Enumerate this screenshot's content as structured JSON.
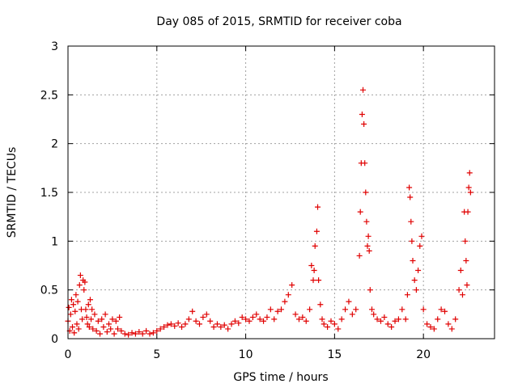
{
  "chart_data": {
    "type": "scatter",
    "title": "Day 085 of 2015, SRMTID for receiver coba",
    "xlabel": "GPS time / hours",
    "ylabel": "SRMTID / TECUs",
    "xlim": [
      0,
      24
    ],
    "ylim": [
      0,
      3
    ],
    "xticks": [
      0,
      5,
      10,
      15,
      20
    ],
    "yticks": [
      0,
      0.5,
      1,
      1.5,
      2,
      2.5,
      3
    ],
    "xtick_labels": [
      "0",
      "5",
      "10",
      "15",
      "20"
    ],
    "ytick_labels": [
      "0",
      "0.5",
      "1",
      "1.5",
      "2",
      "2.5",
      "3"
    ],
    "grid": true,
    "marker": "plus",
    "marker_color": "#e00000",
    "series": [
      {
        "points": [
          [
            0.0,
            0.18
          ],
          [
            0.05,
            0.32
          ],
          [
            0.1,
            0.08
          ],
          [
            0.15,
            0.25
          ],
          [
            0.2,
            0.4
          ],
          [
            0.25,
            0.12
          ],
          [
            0.3,
            0.35
          ],
          [
            0.35,
            0.06
          ],
          [
            0.4,
            0.28
          ],
          [
            0.45,
            0.45
          ],
          [
            0.5,
            0.15
          ],
          [
            0.55,
            0.38
          ],
          [
            0.6,
            0.1
          ],
          [
            0.65,
            0.55
          ],
          [
            0.7,
            0.65
          ],
          [
            0.75,
            0.3
          ],
          [
            0.8,
            0.2
          ],
          [
            0.85,
            0.6
          ],
          [
            0.9,
            0.5
          ],
          [
            0.95,
            0.58
          ],
          [
            1.0,
            0.3
          ],
          [
            1.05,
            0.22
          ],
          [
            1.1,
            0.15
          ],
          [
            1.15,
            0.35
          ],
          [
            1.2,
            0.12
          ],
          [
            1.25,
            0.4
          ],
          [
            1.3,
            0.2
          ],
          [
            1.35,
            0.3
          ],
          [
            1.4,
            0.1
          ],
          [
            1.5,
            0.25
          ],
          [
            1.6,
            0.08
          ],
          [
            1.7,
            0.18
          ],
          [
            1.8,
            0.05
          ],
          [
            1.9,
            0.2
          ],
          [
            2.0,
            0.12
          ],
          [
            2.1,
            0.25
          ],
          [
            2.2,
            0.07
          ],
          [
            2.3,
            0.15
          ],
          [
            2.4,
            0.1
          ],
          [
            2.5,
            0.2
          ],
          [
            2.6,
            0.05
          ],
          [
            2.7,
            0.18
          ],
          [
            2.8,
            0.1
          ],
          [
            2.9,
            0.22
          ],
          [
            3.0,
            0.08
          ],
          [
            3.2,
            0.05
          ],
          [
            3.4,
            0.04
          ],
          [
            3.6,
            0.06
          ],
          [
            3.8,
            0.05
          ],
          [
            4.0,
            0.07
          ],
          [
            4.2,
            0.05
          ],
          [
            4.4,
            0.08
          ],
          [
            4.6,
            0.05
          ],
          [
            4.8,
            0.06
          ],
          [
            5.0,
            0.08
          ],
          [
            5.2,
            0.1
          ],
          [
            5.4,
            0.12
          ],
          [
            5.6,
            0.14
          ],
          [
            5.8,
            0.15
          ],
          [
            6.0,
            0.13
          ],
          [
            6.2,
            0.16
          ],
          [
            6.4,
            0.12
          ],
          [
            6.6,
            0.15
          ],
          [
            6.8,
            0.2
          ],
          [
            7.0,
            0.28
          ],
          [
            7.2,
            0.18
          ],
          [
            7.4,
            0.15
          ],
          [
            7.6,
            0.22
          ],
          [
            7.8,
            0.25
          ],
          [
            8.0,
            0.18
          ],
          [
            8.2,
            0.12
          ],
          [
            8.4,
            0.15
          ],
          [
            8.6,
            0.12
          ],
          [
            8.8,
            0.14
          ],
          [
            9.0,
            0.1
          ],
          [
            9.2,
            0.15
          ],
          [
            9.4,
            0.18
          ],
          [
            9.6,
            0.16
          ],
          [
            9.8,
            0.22
          ],
          [
            10.0,
            0.2
          ],
          [
            10.2,
            0.18
          ],
          [
            10.4,
            0.22
          ],
          [
            10.6,
            0.25
          ],
          [
            10.8,
            0.2
          ],
          [
            11.0,
            0.18
          ],
          [
            11.2,
            0.22
          ],
          [
            11.4,
            0.3
          ],
          [
            11.6,
            0.2
          ],
          [
            11.8,
            0.28
          ],
          [
            12.0,
            0.3
          ],
          [
            12.2,
            0.38
          ],
          [
            12.4,
            0.45
          ],
          [
            12.6,
            0.55
          ],
          [
            12.8,
            0.25
          ],
          [
            13.0,
            0.2
          ],
          [
            13.2,
            0.22
          ],
          [
            13.4,
            0.18
          ],
          [
            13.6,
            0.3
          ],
          [
            13.7,
            0.75
          ],
          [
            13.8,
            0.6
          ],
          [
            13.85,
            0.7
          ],
          [
            13.9,
            0.95
          ],
          [
            14.0,
            1.1
          ],
          [
            14.05,
            1.35
          ],
          [
            14.1,
            0.6
          ],
          [
            14.2,
            0.35
          ],
          [
            14.3,
            0.2
          ],
          [
            14.4,
            0.15
          ],
          [
            14.6,
            0.12
          ],
          [
            14.8,
            0.18
          ],
          [
            15.0,
            0.15
          ],
          [
            15.2,
            0.1
          ],
          [
            15.4,
            0.2
          ],
          [
            15.6,
            0.3
          ],
          [
            15.8,
            0.38
          ],
          [
            16.0,
            0.25
          ],
          [
            16.2,
            0.3
          ],
          [
            16.4,
            0.85
          ],
          [
            16.45,
            1.3
          ],
          [
            16.5,
            1.8
          ],
          [
            16.55,
            2.3
          ],
          [
            16.6,
            2.55
          ],
          [
            16.65,
            2.2
          ],
          [
            16.7,
            1.8
          ],
          [
            16.75,
            1.5
          ],
          [
            16.8,
            1.2
          ],
          [
            16.85,
            0.95
          ],
          [
            16.9,
            1.05
          ],
          [
            16.95,
            0.9
          ],
          [
            17.0,
            0.5
          ],
          [
            17.1,
            0.3
          ],
          [
            17.2,
            0.25
          ],
          [
            17.4,
            0.2
          ],
          [
            17.6,
            0.18
          ],
          [
            17.8,
            0.22
          ],
          [
            18.0,
            0.15
          ],
          [
            18.2,
            0.12
          ],
          [
            18.4,
            0.18
          ],
          [
            18.6,
            0.2
          ],
          [
            18.8,
            0.3
          ],
          [
            19.0,
            0.2
          ],
          [
            19.1,
            0.45
          ],
          [
            19.2,
            1.55
          ],
          [
            19.25,
            1.45
          ],
          [
            19.3,
            1.2
          ],
          [
            19.35,
            1.0
          ],
          [
            19.4,
            0.8
          ],
          [
            19.5,
            0.6
          ],
          [
            19.6,
            0.5
          ],
          [
            19.7,
            0.7
          ],
          [
            19.8,
            0.95
          ],
          [
            19.9,
            1.05
          ],
          [
            20.0,
            0.3
          ],
          [
            20.2,
            0.15
          ],
          [
            20.4,
            0.12
          ],
          [
            20.6,
            0.1
          ],
          [
            20.8,
            0.2
          ],
          [
            21.0,
            0.3
          ],
          [
            21.2,
            0.28
          ],
          [
            21.4,
            0.15
          ],
          [
            21.6,
            0.1
          ],
          [
            21.8,
            0.2
          ],
          [
            22.0,
            0.5
          ],
          [
            22.1,
            0.7
          ],
          [
            22.2,
            0.45
          ],
          [
            22.3,
            1.3
          ],
          [
            22.35,
            1.0
          ],
          [
            22.4,
            0.8
          ],
          [
            22.45,
            0.55
          ],
          [
            22.5,
            1.3
          ],
          [
            22.55,
            1.55
          ],
          [
            22.6,
            1.7
          ],
          [
            22.65,
            1.5
          ]
        ]
      }
    ]
  }
}
